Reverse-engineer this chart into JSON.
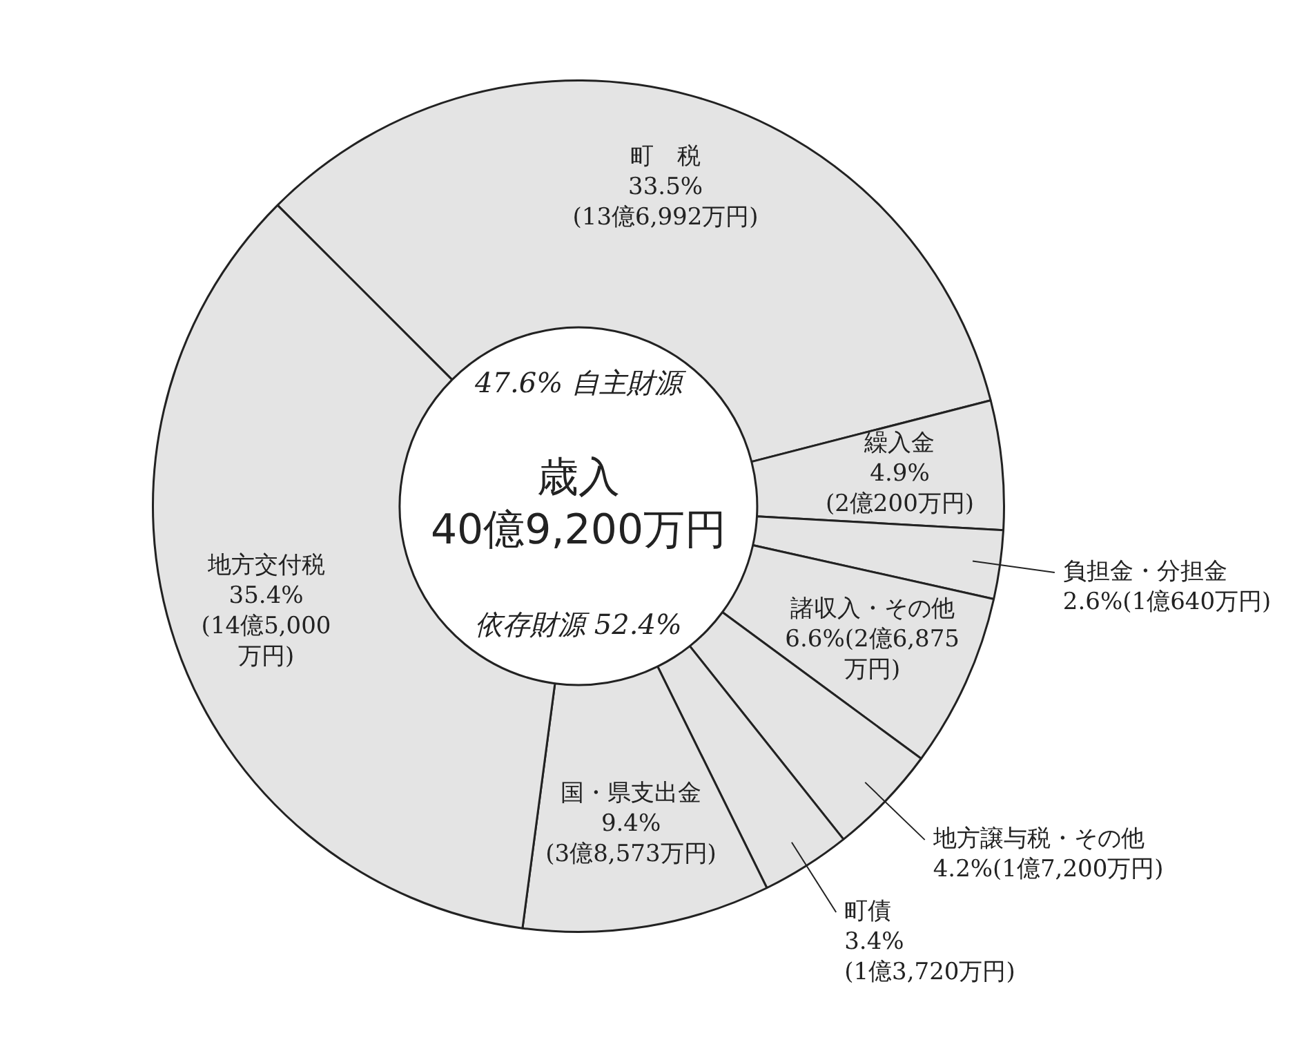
{
  "chart_data": {
    "type": "donut",
    "title": "歳入 40億9,200万円",
    "categories": [
      "町　税",
      "繰入金",
      "負担金・分担金",
      "諸収入・その他",
      "地方譲与税・その他",
      "町債",
      "国・県支出金",
      "地方交付税"
    ],
    "values": [
      33.5,
      4.9,
      2.6,
      6.6,
      4.2,
      3.4,
      9.4,
      35.4
    ],
    "value_labels": [
      "33.5%\n(13億6,992万円)",
      "4.9%\n(2億200万円)",
      "2.6%(1億640万円)",
      "6.6%(2億6,875\n万円)",
      "4.2%(1億7,200万円)",
      "3.4%\n(1億3,720万円)",
      "9.4%\n(3億8,573万円)",
      "35.4%\n(14億5,000\n万円)"
    ],
    "colors": [
      "#e4e4e4",
      "#e4e4e4",
      "#e4e4e4",
      "#e4e4e4",
      "#e4e4e4",
      "#e4e4e4",
      "#e4e4e4",
      "#e4e4e4"
    ],
    "annotations": [
      "47.6% 自主財源",
      "依存財源 52.4%"
    ],
    "legend": false
  }
}
